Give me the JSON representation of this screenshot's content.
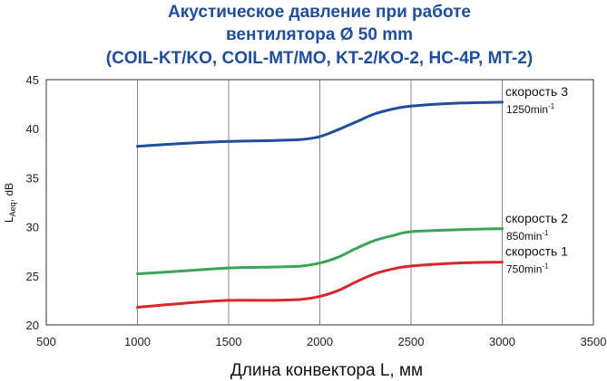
{
  "chart_data": {
    "type": "line",
    "title": [
      "Акустическое давление при работе",
      "вентилятора Ø 50 mm",
      "(COIL-KT/KO, COIL-MT/MO, KT-2/KO-2, HC-4P, MT-2)"
    ],
    "xlabel": "Длина конвектора L, мм",
    "ylabel_main": "L",
    "ylabel_sub": "Aeq",
    "ylabel_unit": ", dB",
    "xlim": [
      500,
      3500
    ],
    "ylim": [
      20,
      45
    ],
    "xticks": [
      500,
      1000,
      1500,
      2000,
      2500,
      3000,
      3500
    ],
    "yticks": [
      20,
      25,
      30,
      35,
      40,
      45
    ],
    "grid": "vertical",
    "series": [
      {
        "name": "скорость 3",
        "rpm": "1250",
        "unit": "min",
        "unit_sup": "-1",
        "color": "#1f4e9c",
        "x": [
          1000,
          1250,
          1500,
          1750,
          1900,
          2000,
          2100,
          2200,
          2300,
          2400,
          2500,
          2750,
          3000
        ],
        "y": [
          38.2,
          38.5,
          38.7,
          38.8,
          38.9,
          39.2,
          39.9,
          40.7,
          41.5,
          42.0,
          42.3,
          42.6,
          42.7
        ]
      },
      {
        "name": "скорость 2",
        "rpm": "850",
        "unit": "min",
        "unit_sup": "-1",
        "color": "#3aa556",
        "x": [
          1000,
          1250,
          1500,
          1750,
          1900,
          2000,
          2100,
          2200,
          2300,
          2400,
          2500,
          2750,
          3000
        ],
        "y": [
          25.2,
          25.5,
          25.8,
          25.9,
          26.0,
          26.3,
          26.9,
          27.8,
          28.6,
          29.1,
          29.5,
          29.7,
          29.8
        ]
      },
      {
        "name": "скорость 1",
        "rpm": "750",
        "unit": "min",
        "unit_sup": "-1",
        "color": "#d9262b",
        "x": [
          1000,
          1250,
          1500,
          1750,
          1900,
          2000,
          2100,
          2200,
          2300,
          2400,
          2500,
          2750,
          3000
        ],
        "y": [
          21.8,
          22.2,
          22.5,
          22.5,
          22.6,
          22.9,
          23.5,
          24.4,
          25.2,
          25.7,
          26.0,
          26.3,
          26.4
        ]
      }
    ]
  }
}
